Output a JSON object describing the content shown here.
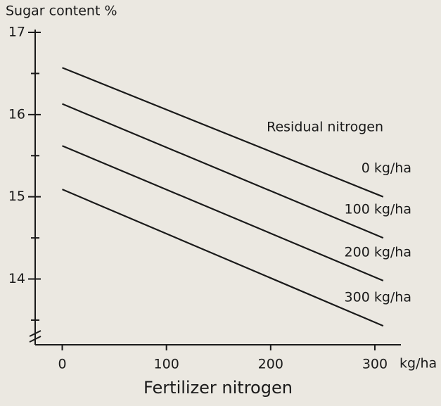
{
  "chart_data": {
    "type": "line",
    "y_label": "Sugar content %",
    "x_label": "Fertilizer nitrogen",
    "x_unit": "kg/ha",
    "legend_title": "Residual nitrogen",
    "x": [
      0,
      308
    ],
    "series": [
      {
        "name": "0 kg/ha",
        "color": "#1a1a1a",
        "values": [
          16.57,
          15.0
        ]
      },
      {
        "name": "100 kg/ha",
        "color": "#1a1a1a",
        "values": [
          16.13,
          14.5
        ]
      },
      {
        "name": "200 kg/ha",
        "color": "#1a1a1a",
        "values": [
          15.62,
          13.98
        ]
      },
      {
        "name": "300 kg/ha",
        "color": "#1a1a1a",
        "values": [
          15.09,
          13.43
        ]
      }
    ],
    "xlim": [
      -26,
      325
    ],
    "ylim": [
      13.2,
      17
    ],
    "xticks": [
      0,
      100,
      200,
      300
    ],
    "yticks": [
      14,
      15,
      16,
      17
    ],
    "y_minor_ticks": [
      13.5,
      14.5,
      15.5,
      16.5
    ],
    "grid": false
  }
}
